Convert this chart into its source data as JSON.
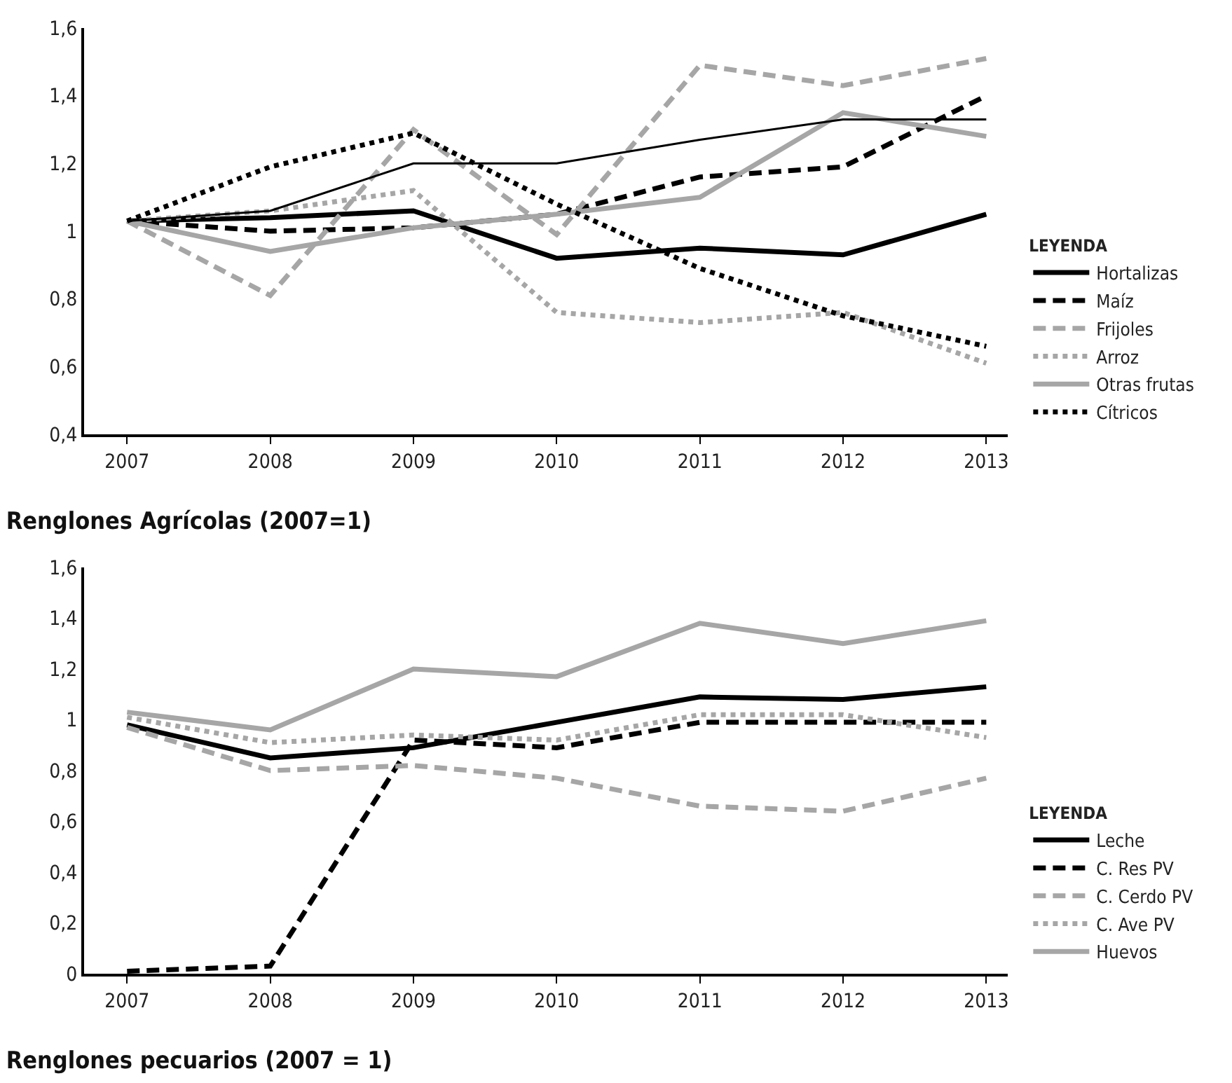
{
  "chart_data": [
    {
      "type": "line",
      "title": "Renglones Agrícolas (2007=1)",
      "legend_title": "LEYENDA",
      "legend": "bottom right",
      "grid": false,
      "marker": "none",
      "categories": [
        "2007",
        "2008",
        "2009",
        "2010",
        "2011",
        "2012",
        "2013"
      ],
      "ylim": [
        0.4,
        1.6
      ],
      "yticks": [
        {
          "value": 0.4,
          "label": "0,4"
        },
        {
          "value": 0.6,
          "label": "0,6"
        },
        {
          "value": 0.8,
          "label": "0,8"
        },
        {
          "value": 1,
          "label": "1"
        },
        {
          "value": 1.2,
          "label": "1,2"
        },
        {
          "value": 1.4,
          "label": "1,4"
        },
        {
          "value": 1.6,
          "label": "1,6"
        }
      ],
      "series": [
        {
          "name": "Hortalizas",
          "color": "#000000",
          "line_style": "solid",
          "values": [
            1.03,
            1.04,
            1.06,
            0.92,
            0.95,
            0.93,
            1.05
          ]
        },
        {
          "name": "Maíz",
          "color": "#000000",
          "line_style": "dashed",
          "values": [
            1.03,
            1.0,
            1.01,
            1.05,
            1.16,
            1.19,
            1.4
          ]
        },
        {
          "name": "Frijoles",
          "color": "#a6a6a6",
          "line_style": "dashed",
          "values": [
            1.03,
            0.81,
            1.3,
            0.99,
            1.49,
            1.43,
            1.51
          ]
        },
        {
          "name": "Arroz",
          "color": "#a6a6a6",
          "line_style": "dotted",
          "values": [
            1.03,
            1.06,
            1.12,
            0.76,
            0.73,
            0.76,
            0.61
          ]
        },
        {
          "name": "Otras frutas",
          "color": "#a6a6a6",
          "line_style": "solid",
          "values": [
            1.03,
            0.94,
            1.01,
            1.05,
            1.1,
            1.35,
            1.28
          ]
        },
        {
          "name": "Cítricos",
          "color": "#000000",
          "line_style": "dotted",
          "values": [
            1.03,
            1.19,
            1.29,
            1.08,
            0.89,
            0.75,
            0.66
          ]
        },
        {
          "color": "#000000",
          "line_style": "solid",
          "values": [
            1.03,
            1.06,
            1.2,
            1.2,
            1.27,
            1.33,
            1.33
          ]
        }
      ]
    },
    {
      "type": "line",
      "title": "Renglones pecuarios (2007 = 1)",
      "legend_title": "LEYENDA",
      "legend": "bottom right",
      "grid": false,
      "marker": "none",
      "categories": [
        "2007",
        "2008",
        "2009",
        "2010",
        "2011",
        "2012",
        "2013"
      ],
      "ylim": [
        0,
        1.6
      ],
      "yticks": [
        {
          "value": 0,
          "label": "0"
        },
        {
          "value": 0.2,
          "label": "0,2"
        },
        {
          "value": 0.4,
          "label": "0,4"
        },
        {
          "value": 0.6,
          "label": "0,6"
        },
        {
          "value": 0.8,
          "label": "0,8"
        },
        {
          "value": 1,
          "label": "1"
        },
        {
          "value": 1.2,
          "label": "1,2"
        },
        {
          "value": 1.4,
          "label": "1,4"
        },
        {
          "value": 1.6,
          "label": "1,6"
        }
      ],
      "series": [
        {
          "name": "Leche",
          "color": "#000000",
          "line_style": "solid",
          "values": [
            0.98,
            0.85,
            0.89,
            0.99,
            1.09,
            1.08,
            1.13
          ]
        },
        {
          "name": "C. Res PV",
          "color": "#000000",
          "line_style": "dashed",
          "values": [
            0.01,
            0.03,
            0.92,
            0.89,
            0.99,
            0.99,
            0.99
          ]
        },
        {
          "name": "C. Cerdo PV",
          "color": "#a6a6a6",
          "line_style": "dashed",
          "values": [
            0.97,
            0.8,
            0.82,
            0.77,
            0.66,
            0.64,
            0.77
          ]
        },
        {
          "name": "C. Ave PV",
          "color": "#a6a6a6",
          "line_style": "dotted",
          "values": [
            1.01,
            0.91,
            0.94,
            0.92,
            1.02,
            1.02,
            0.93
          ]
        },
        {
          "name": "Huevos",
          "color": "#a6a6a6",
          "line_style": "solid",
          "values": [
            1.03,
            0.96,
            1.2,
            1.17,
            1.38,
            1.3,
            1.39
          ]
        }
      ]
    }
  ]
}
